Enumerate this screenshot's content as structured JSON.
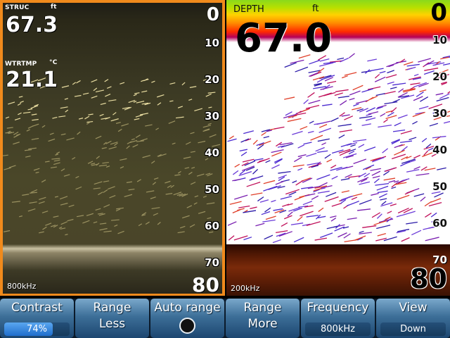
{
  "left_panel": {
    "struc_label": "STRUC",
    "struc_unit": "ft",
    "struc_value": "67.3",
    "temp_label": "WTRTMP",
    "temp_unit": "°C",
    "temp_value": "21.1",
    "range_min": "0",
    "range_max": "80",
    "frequency": "800kHz",
    "depth_ticks": [
      "10",
      "20",
      "30",
      "40",
      "50",
      "60",
      "70"
    ],
    "colors": {
      "border": "#f08a1c",
      "background": "#4a4729"
    }
  },
  "right_panel": {
    "depth_label": "DEPTH",
    "depth_unit": "ft",
    "depth_value": "67.0",
    "range_min": "0",
    "range_max": "80",
    "frequency": "200kHz",
    "depth_ticks": [
      "10",
      "20",
      "30",
      "40",
      "50",
      "60",
      "70"
    ]
  },
  "softkeys": [
    {
      "name": "contrast",
      "top": "Contrast",
      "sub": "74%",
      "progress": 0.74
    },
    {
      "name": "range-less",
      "top": "Range",
      "bottom": "Less"
    },
    {
      "name": "auto-range",
      "top": "Auto range",
      "toggle_icon": "radio-off-icon"
    },
    {
      "name": "range-more",
      "top": "Range",
      "bottom": "More"
    },
    {
      "name": "frequency",
      "top": "Frequency",
      "sub": "800kHz"
    },
    {
      "name": "view",
      "top": "View",
      "sub": "Down"
    }
  ]
}
